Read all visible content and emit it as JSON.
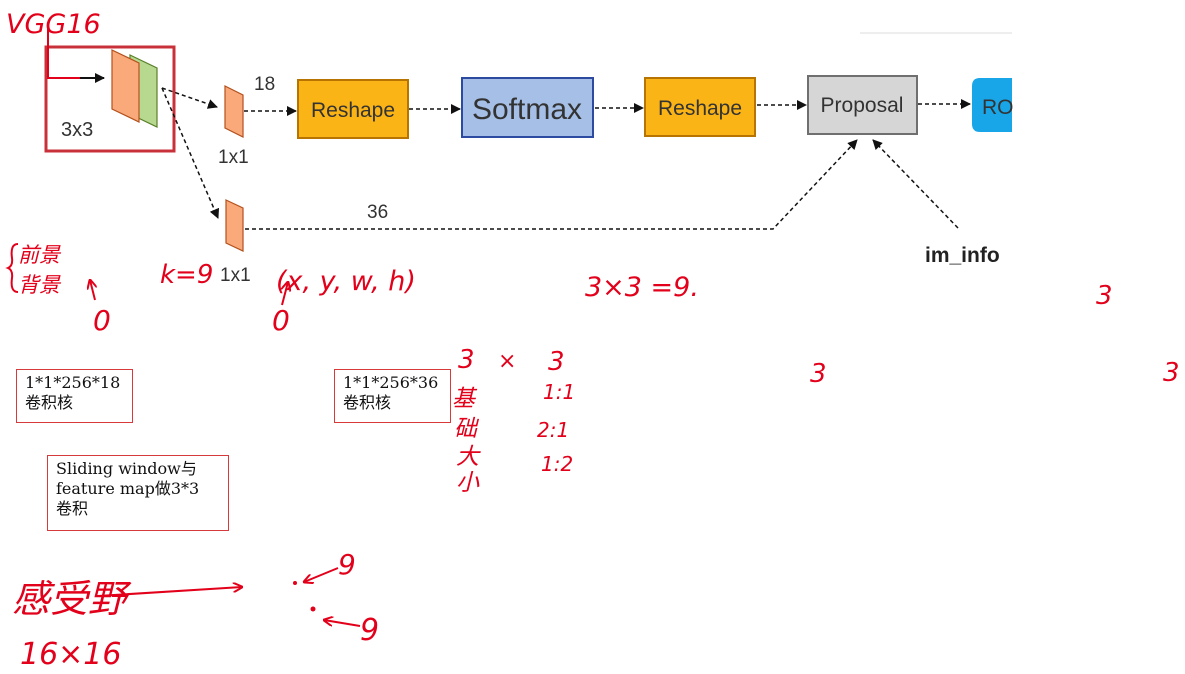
{
  "diagram": {
    "vgg_label": "VGG16",
    "conv_label": "3x3",
    "conv1_label": "1x1",
    "conv2_label": "1x1",
    "cls_channels": "18",
    "reg_channels": "36",
    "reshape1": "Reshape",
    "softmax": "Softmax",
    "reshape2": "Reshape",
    "proposal": "Proposal",
    "roi": "RO",
    "im_info": "im_info",
    "colors": {
      "orange_box": "#fbb416",
      "orange_border": "#b77400",
      "softmax_box": "#a6bfe6",
      "softmax_border": "#2c4aa0",
      "proposal_box": "#d6d6d6",
      "proposal_border": "#6f6f6f",
      "roi_box": "#18a6e8",
      "feature_orange": "#f9a97a",
      "feature_green": "#b6d98f",
      "frame_red": "#c8313a",
      "ink_red": "#e2001a"
    }
  },
  "annotations": {
    "fg_bg_line1": "前景",
    "fg_bg_line2": "背景",
    "fg_zero": "0",
    "k9": "k=9",
    "xywh": "(x, y, w, h)",
    "xywh_zero": "0",
    "three_times_three": "3×3 =9.",
    "three_right_top": "3",
    "three_mid": "3",
    "three_right": "3",
    "col_3": "3",
    "col_x": "×",
    "col_3b": "3",
    "base_chars": [
      "基",
      "础",
      "大",
      "小"
    ],
    "ratios": [
      "1:1",
      "2:1",
      "1:2"
    ],
    "receptive_field": "感受野",
    "receptive_size": "16×16",
    "nine_1": "9",
    "nine_2": "9"
  },
  "notes": {
    "note1": "1*1*256*18\n卷积核",
    "note2": "1*1*256*36\n卷积核",
    "note3": "Sliding window与\nfeature map做3*3\n卷积"
  }
}
